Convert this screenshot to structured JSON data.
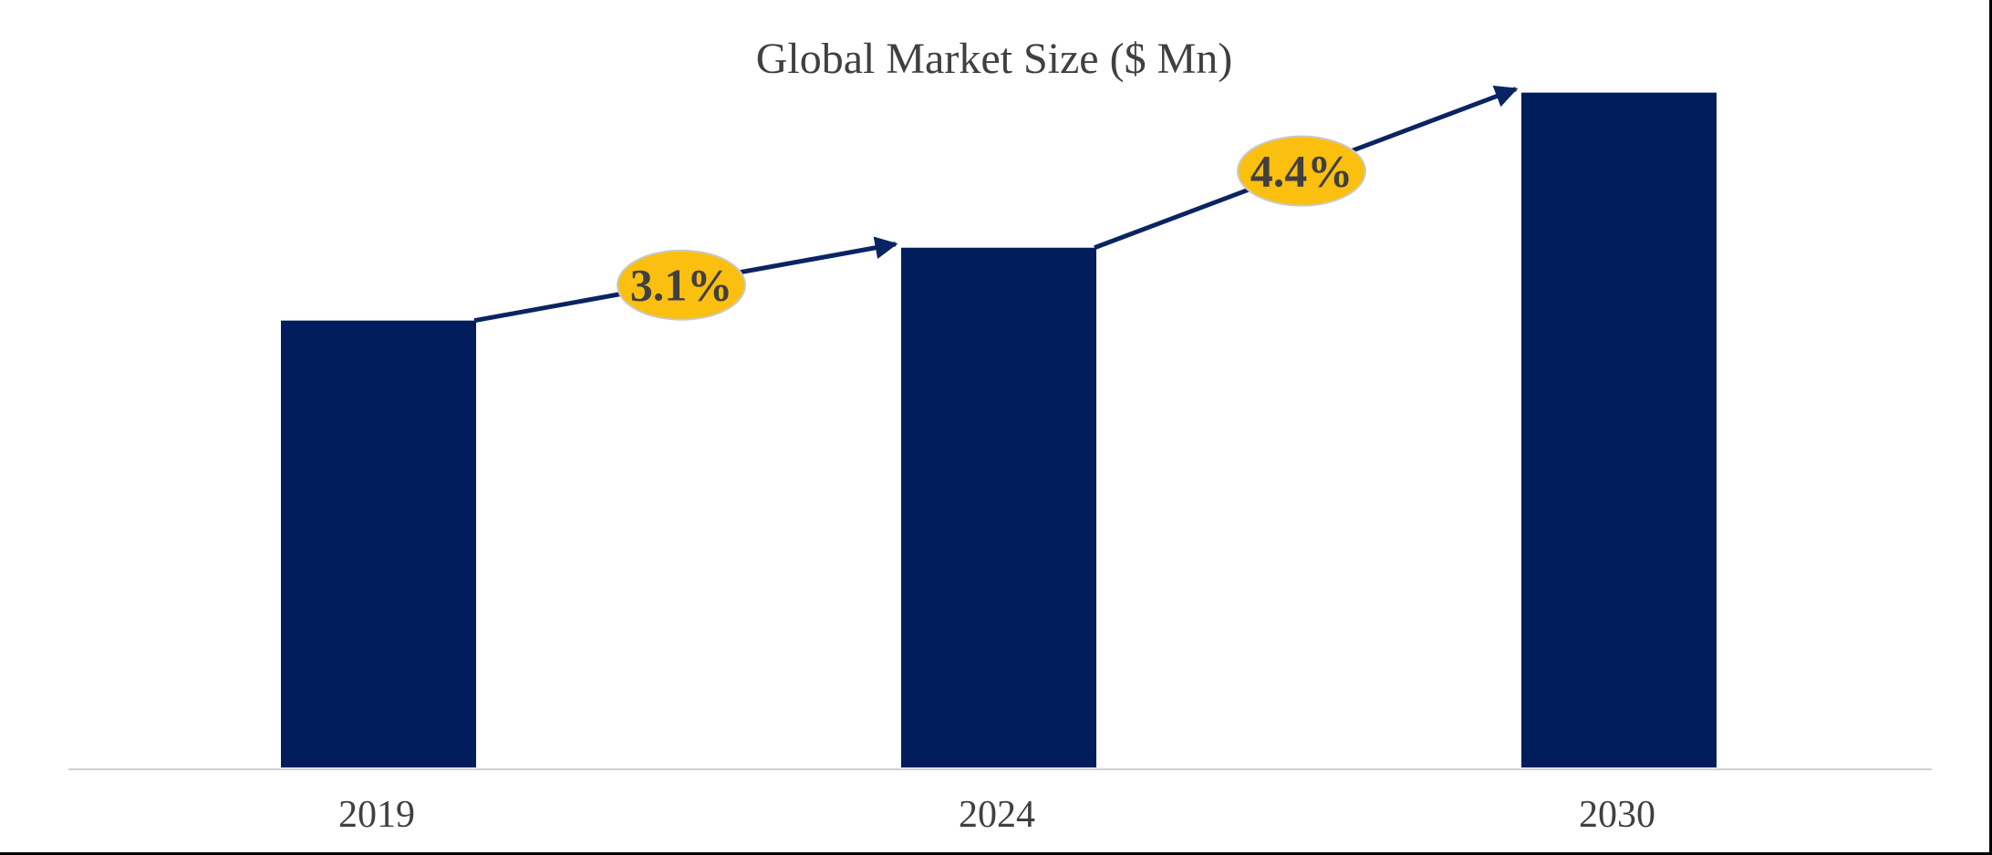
{
  "chart_data": {
    "type": "bar",
    "title": "Global Market Size ($ Mn)",
    "categories": [
      "2019",
      "2024",
      "2030"
    ],
    "values": [
      100,
      116.3,
      151
    ],
    "ylim": [
      0,
      155
    ],
    "grid": false,
    "legend": "none",
    "annotations": [
      {
        "from": "2019",
        "to": "2024",
        "label": "3.1%"
      },
      {
        "from": "2024",
        "to": "2030",
        "label": "4.4%"
      }
    ]
  },
  "colors": {
    "bar": "#021d5c",
    "arrow": "#0a2463",
    "badge_fill": "#fbbf0f",
    "badge_stroke": "#c9c9c9",
    "axis": "#d0d0d0",
    "text": "#404040"
  }
}
